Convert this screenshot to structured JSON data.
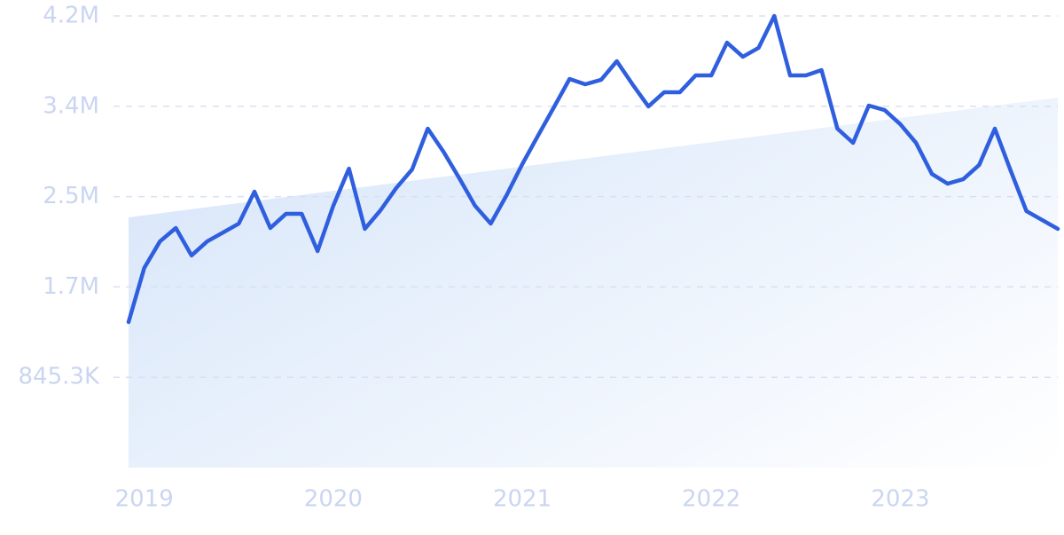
{
  "chart_data": {
    "type": "line",
    "x": [
      2018.917,
      2019,
      2019.083,
      2019.167,
      2019.25,
      2019.333,
      2019.417,
      2019.5,
      2019.583,
      2019.667,
      2019.75,
      2019.833,
      2019.917,
      2020,
      2020.083,
      2020.167,
      2020.25,
      2020.333,
      2020.417,
      2020.5,
      2020.583,
      2020.667,
      2020.75,
      2020.833,
      2020.917,
      2021,
      2021.083,
      2021.167,
      2021.25,
      2021.333,
      2021.417,
      2021.5,
      2021.583,
      2021.667,
      2021.75,
      2021.833,
      2021.917,
      2022,
      2022.083,
      2022.167,
      2022.25,
      2022.333,
      2022.417,
      2022.5,
      2022.583,
      2022.667,
      2022.75,
      2022.833,
      2022.917,
      2023,
      2023.083,
      2023.167,
      2023.25,
      2023.333,
      2023.417,
      2023.5,
      2023.583,
      2023.667,
      2023.75,
      2023.833
    ],
    "values": [
      1362000,
      1868000,
      2117000,
      2242000,
      1985000,
      2117000,
      2200000,
      2283000,
      2582000,
      2242000,
      2375000,
      2375000,
      2026000,
      2450000,
      2798000,
      2234000,
      2408000,
      2616000,
      2790000,
      3172000,
      2956000,
      2707000,
      2450000,
      2283000,
      2549000,
      2840000,
      3106000,
      3371000,
      3637000,
      3587000,
      3629000,
      3803000,
      3587000,
      3380000,
      3512000,
      3512000,
      3670000,
      3670000,
      3977000,
      3845000,
      3928000,
      4226000,
      3670000,
      3670000,
      3720000,
      3172000,
      3039000,
      3388000,
      3346000,
      3213000,
      3039000,
      2748000,
      2657000,
      2699000,
      2832000,
      3172000,
      2782000,
      2400000,
      2317000,
      2234000
    ],
    "color": "#2f5fde",
    "trend": [
      2342000,
      3463000
    ],
    "xlim": [
      2018.917,
      2023.833
    ],
    "xticks": [
      2019,
      2020,
      2021,
      2022,
      2023
    ],
    "ylim": [
      0,
      4226500
    ],
    "yticks": [
      {
        "value": 845300,
        "label": "845.3K"
      },
      {
        "value": 1690600,
        "label": "1.7M"
      },
      {
        "value": 2535900,
        "label": "2.5M"
      },
      {
        "value": 3381200,
        "label": "3.4M"
      },
      {
        "value": 4226500,
        "label": "4.2M"
      }
    ],
    "grid": true
  }
}
